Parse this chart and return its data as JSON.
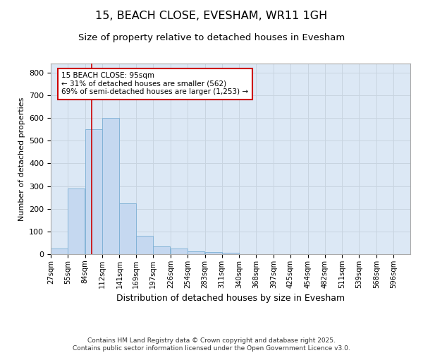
{
  "title": "15, BEACH CLOSE, EVESHAM, WR11 1GH",
  "subtitle": "Size of property relative to detached houses in Evesham",
  "xlabel": "Distribution of detached houses by size in Evesham",
  "ylabel": "Number of detached properties",
  "bin_labels": [
    "27sqm",
    "55sqm",
    "84sqm",
    "112sqm",
    "141sqm",
    "169sqm",
    "197sqm",
    "226sqm",
    "254sqm",
    "283sqm",
    "311sqm",
    "340sqm",
    "368sqm",
    "397sqm",
    "425sqm",
    "454sqm",
    "482sqm",
    "511sqm",
    "539sqm",
    "568sqm",
    "596sqm"
  ],
  "bin_edges": [
    27,
    55,
    84,
    112,
    141,
    169,
    197,
    226,
    254,
    283,
    311,
    340,
    368,
    397,
    425,
    454,
    482,
    511,
    539,
    568,
    596
  ],
  "bar_values": [
    25,
    290,
    550,
    600,
    225,
    80,
    35,
    25,
    12,
    8,
    5,
    0,
    0,
    0,
    0,
    0,
    0,
    0,
    0,
    0
  ],
  "bar_color": "#c5d8f0",
  "bar_edge_color": "#7bafd4",
  "property_size": 95,
  "red_line_color": "#cc0000",
  "annotation_line1": "15 BEACH CLOSE: 95sqm",
  "annotation_line2": "← 31% of detached houses are smaller (562)",
  "annotation_line3": "69% of semi-detached houses are larger (1,253) →",
  "annotation_box_color": "#ffffff",
  "annotation_border_color": "#cc0000",
  "ylim": [
    0,
    840
  ],
  "yticks": [
    0,
    100,
    200,
    300,
    400,
    500,
    600,
    700,
    800
  ],
  "grid_color": "#c8d4e0",
  "background_color": "#dce8f5",
  "footer_text": "Contains HM Land Registry data © Crown copyright and database right 2025.\nContains public sector information licensed under the Open Government Licence v3.0.",
  "title_fontsize": 11.5,
  "subtitle_fontsize": 9.5,
  "xlabel_fontsize": 9,
  "ylabel_fontsize": 8,
  "footer_fontsize": 6.5
}
